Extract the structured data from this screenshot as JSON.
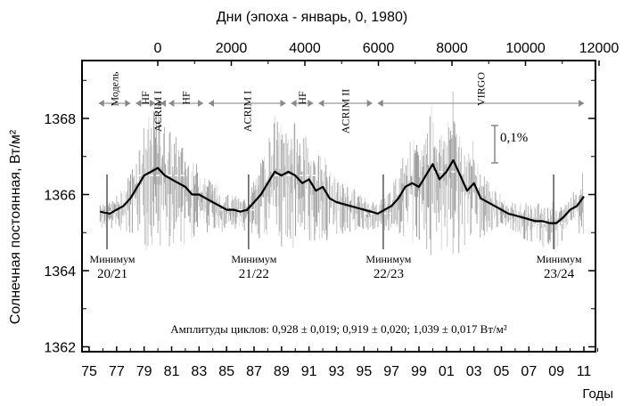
{
  "chart_data": {
    "type": "line",
    "title": "",
    "top_axis_label": "Дни (эпоха - январь, 0, 1980)",
    "top_ticks": [
      0,
      2000,
      4000,
      6000,
      8000,
      10000,
      12000
    ],
    "xlabel": "Годы",
    "x_tick_labels": [
      "75",
      "77",
      "79",
      "81",
      "83",
      "85",
      "87",
      "89",
      "91",
      "93",
      "95",
      "97",
      "99",
      "01",
      "03",
      "05",
      "07",
      "09",
      "11"
    ],
    "x_tick_years": [
      1975,
      1977,
      1979,
      1981,
      1983,
      1985,
      1987,
      1989,
      1991,
      1993,
      1995,
      1997,
      1999,
      2001,
      2003,
      2005,
      2007,
      2009,
      2011
    ],
    "xlim": [
      1974.5,
      2011.7
    ],
    "ylabel": "Солнечная постоянная, Вт/м²",
    "y_ticks": [
      1362,
      1364,
      1366,
      1368
    ],
    "ylim": [
      1361.8,
      1369.8
    ],
    "grid": false,
    "series": [
      {
        "name": "smoothed TSI",
        "x": [
          1975.8,
          1976.5,
          1977,
          1977.5,
          1978,
          1978.5,
          1979,
          1979.5,
          1980,
          1980.5,
          1981,
          1981.5,
          1982,
          1982.5,
          1983,
          1983.5,
          1984,
          1984.5,
          1985,
          1985.5,
          1986,
          1986.5,
          1987,
          1987.5,
          1988,
          1988.5,
          1989,
          1989.5,
          1990,
          1990.5,
          1991,
          1991.5,
          1992,
          1992.5,
          1993,
          1993.5,
          1994,
          1994.5,
          1995,
          1995.5,
          1996,
          1996.5,
          1997,
          1997.5,
          1998,
          1998.5,
          1999,
          1999.5,
          2000,
          2000.5,
          2001,
          2001.5,
          2002,
          2002.5,
          2003,
          2003.5,
          2004,
          2004.5,
          2005,
          2005.5,
          2006,
          2006.5,
          2007,
          2007.5,
          2008,
          2008.5,
          2009,
          2009.5,
          2010,
          2010.5,
          2011
        ],
        "y": [
          1365.55,
          1365.5,
          1365.6,
          1365.7,
          1365.9,
          1366.2,
          1366.5,
          1366.6,
          1366.7,
          1366.5,
          1366.4,
          1366.3,
          1366.2,
          1366.0,
          1366.0,
          1365.9,
          1365.8,
          1365.7,
          1365.6,
          1365.6,
          1365.55,
          1365.6,
          1365.8,
          1366.0,
          1366.3,
          1366.6,
          1366.5,
          1366.6,
          1366.5,
          1366.3,
          1366.4,
          1366.1,
          1366.2,
          1365.9,
          1365.8,
          1365.75,
          1365.7,
          1365.65,
          1365.6,
          1365.55,
          1365.5,
          1365.6,
          1365.7,
          1365.9,
          1366.2,
          1366.3,
          1366.2,
          1366.5,
          1366.8,
          1366.4,
          1366.6,
          1366.9,
          1366.5,
          1366.1,
          1366.3,
          1365.9,
          1365.8,
          1365.7,
          1365.6,
          1365.5,
          1365.45,
          1365.4,
          1365.35,
          1365.3,
          1365.3,
          1365.25,
          1365.25,
          1365.4,
          1365.6,
          1365.7,
          1365.95
        ]
      }
    ],
    "cycle_levels": [
      {
        "x": [
          1975.5,
          1977
        ],
        "y": 1365.55
      },
      {
        "x": [
          1978.5,
          1982
        ],
        "y": 1366.5
      },
      {
        "x": [
          1984.5,
          1987
        ],
        "y": 1365.6
      },
      {
        "x": [
          1988.5,
          1991.5
        ],
        "y": 1366.5
      },
      {
        "x": [
          1995,
          1997
        ],
        "y": 1365.5
      },
      {
        "x": [
          2000,
          2002
        ],
        "y": 1366.6
      },
      {
        "x": [
          2007.5,
          2009.5
        ],
        "y": 1365.25
      }
    ],
    "instruments": [
      {
        "label": "Модель",
        "from": 1975.5,
        "to": 1978.2
      },
      {
        "label": "HF",
        "from": 1978.2,
        "to": 1980
      },
      {
        "label": "ACRIM I",
        "from": 1980,
        "to": 1980.6
      },
      {
        "label": "HF",
        "from": 1980.6,
        "to": 1983.5
      },
      {
        "label": "ACRIM I",
        "from": 1983.5,
        "to": 1989.5
      },
      {
        "label": "HF",
        "from": 1989.5,
        "to": 1991.5
      },
      {
        "label": "ACRIM II",
        "from": 1991.5,
        "to": 1995.8
      },
      {
        "label": "VIRGO",
        "from": 1995.8,
        "to": 2011.2
      }
    ],
    "minima": [
      {
        "title": "Минимум",
        "label": "20/21",
        "year": 1976.3
      },
      {
        "title": "Минимум",
        "label": "21/22",
        "year": 1986.6
      },
      {
        "title": "Минимум",
        "label": "22/23",
        "year": 1996.4
      },
      {
        "title": "Минимум",
        "label": "23/24",
        "year": 2008.8
      }
    ],
    "scale_bar_label": "0,1%",
    "annotation": "Амплитуды циклов: 0,928 ± 0,019; 0,919 ± 0,020; 1,039 ± 0,017 Вт/м²"
  }
}
